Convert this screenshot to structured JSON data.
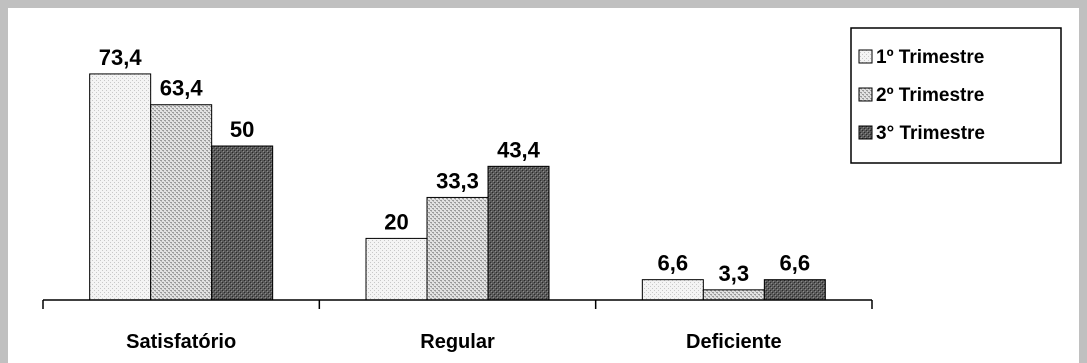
{
  "chart_data": {
    "type": "bar",
    "categories": [
      "Satisfatório",
      "Regular",
      "Deficiente"
    ],
    "series": [
      {
        "name": "1º Trimestre",
        "values": [
          73.4,
          20,
          6.6
        ],
        "labels": [
          "73,4",
          "20",
          "6,6"
        ],
        "pattern": "light"
      },
      {
        "name": "2º Trimestre",
        "values": [
          63.4,
          33.3,
          3.3
        ],
        "labels": [
          "63,4",
          "33,3",
          "3,3"
        ],
        "pattern": "medium"
      },
      {
        "name": "3° Trimestre",
        "values": [
          50,
          43.4,
          6.6
        ],
        "labels": [
          "50",
          "43,4",
          "6,6"
        ],
        "pattern": "dark"
      }
    ],
    "ylim": [
      0,
      80
    ],
    "grid": false,
    "legend_position": "top-right"
  }
}
